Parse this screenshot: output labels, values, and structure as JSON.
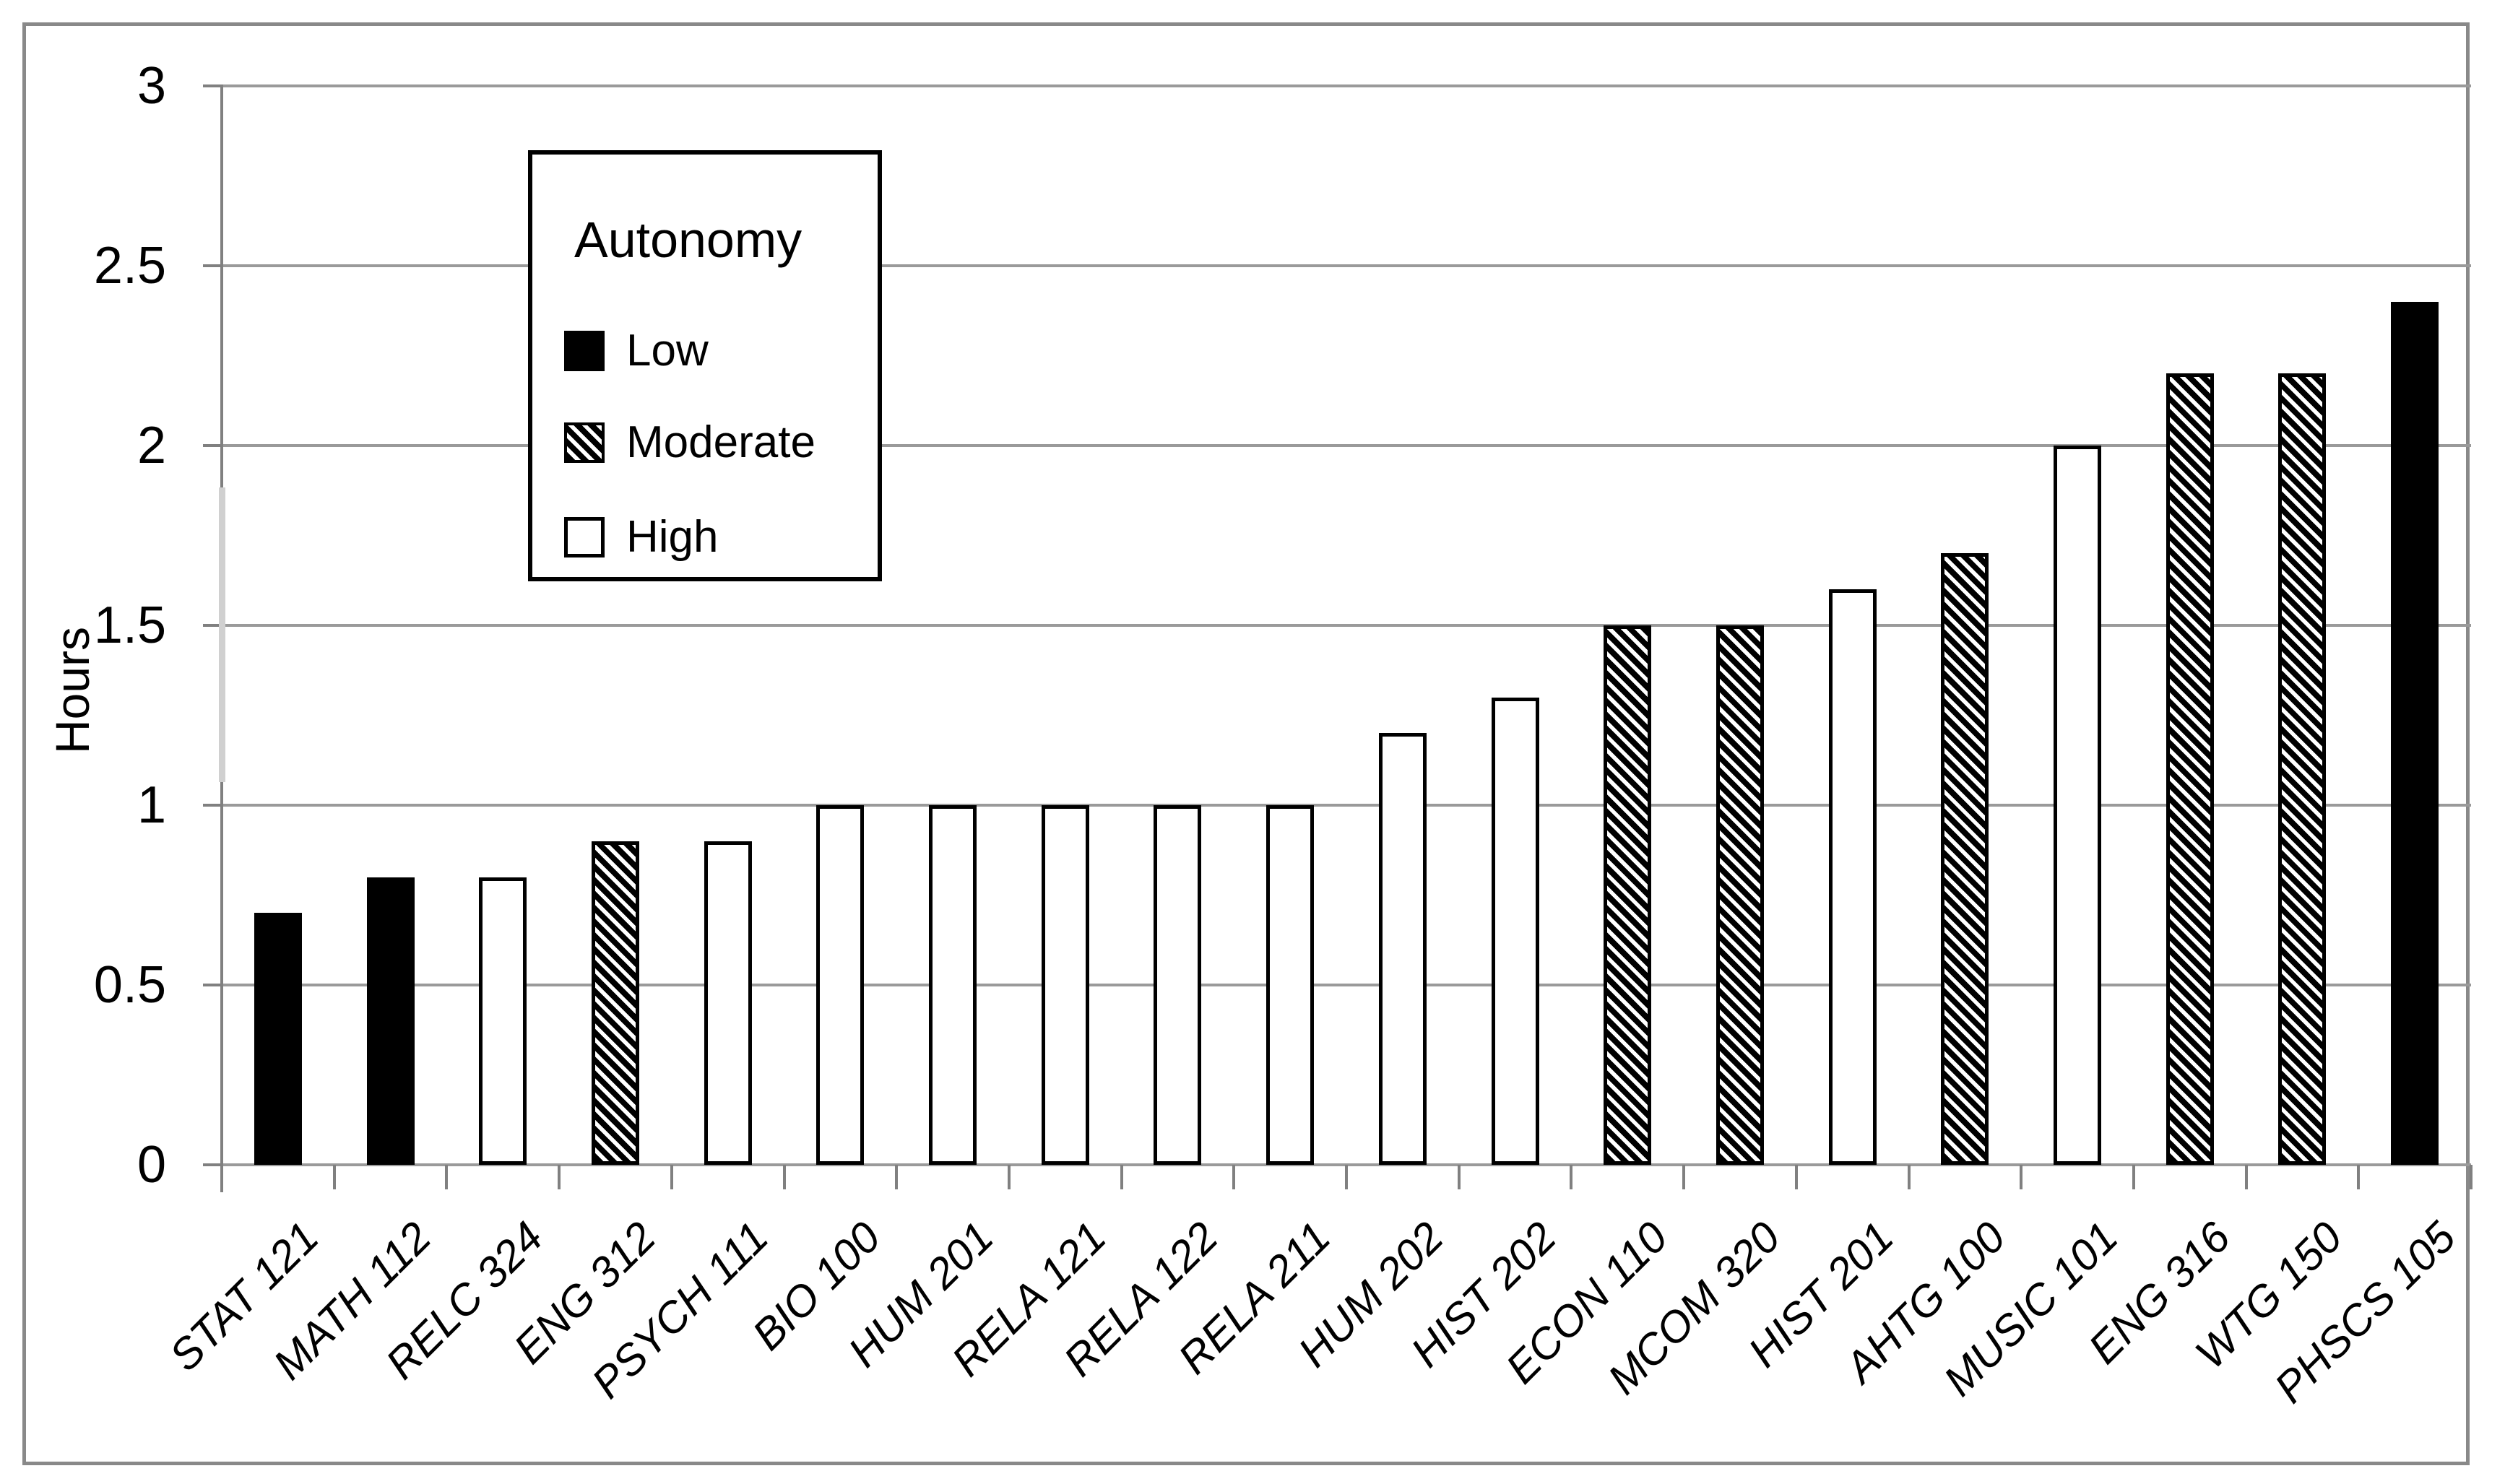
{
  "chart_data": {
    "type": "bar",
    "title": "",
    "xlabel": "",
    "ylabel": "Hours",
    "ylim": [
      0,
      3
    ],
    "grid": "horizontal",
    "yticks": [
      {
        "value": 0,
        "label": "0"
      },
      {
        "value": 0.5,
        "label": "0.5"
      },
      {
        "value": 1,
        "label": "1"
      },
      {
        "value": 1.5,
        "label": "1.5"
      },
      {
        "value": 2,
        "label": "2"
      },
      {
        "value": 2.5,
        "label": "2.5"
      },
      {
        "value": 3,
        "label": "3"
      }
    ],
    "legend": {
      "title": "Autonomy",
      "position": "upper-left-inside",
      "entries": [
        {
          "label": "Low",
          "pattern": "solid-black"
        },
        {
          "label": "Moderate",
          "pattern": "diagonal-hatch"
        },
        {
          "label": "High",
          "pattern": "white-outline"
        }
      ]
    },
    "categories": [
      "STAT 121",
      "MATH 112",
      "RELC 324",
      "ENG 312",
      "PSYCH 111",
      "BIO 100",
      "HUM 201",
      "RELA 121",
      "RELA 122",
      "RELA 211",
      "HUM 202",
      "HIST 202",
      "ECON 110",
      "MCOM 320",
      "HIST 201",
      "AHTG 100",
      "MUSIC 101",
      "ENG 316",
      "WTG 150",
      "PHSCS 105"
    ],
    "bars": [
      {
        "category": "STAT 121",
        "value": 0.7,
        "autonomy": "Low"
      },
      {
        "category": "MATH 112",
        "value": 0.8,
        "autonomy": "Low"
      },
      {
        "category": "RELC 324",
        "value": 0.8,
        "autonomy": "High"
      },
      {
        "category": "ENG 312",
        "value": 0.9,
        "autonomy": "Moderate"
      },
      {
        "category": "PSYCH 111",
        "value": 0.9,
        "autonomy": "High"
      },
      {
        "category": "BIO 100",
        "value": 1.0,
        "autonomy": "High"
      },
      {
        "category": "HUM 201",
        "value": 1.0,
        "autonomy": "High"
      },
      {
        "category": "RELA 121",
        "value": 1.0,
        "autonomy": "High"
      },
      {
        "category": "RELA 122",
        "value": 1.0,
        "autonomy": "High"
      },
      {
        "category": "RELA 211",
        "value": 1.0,
        "autonomy": "High"
      },
      {
        "category": "HUM 202",
        "value": 1.2,
        "autonomy": "High"
      },
      {
        "category": "HIST 202",
        "value": 1.3,
        "autonomy": "High"
      },
      {
        "category": "ECON 110",
        "value": 1.5,
        "autonomy": "Moderate"
      },
      {
        "category": "MCOM 320",
        "value": 1.5,
        "autonomy": "Moderate"
      },
      {
        "category": "HIST 201",
        "value": 1.6,
        "autonomy": "High"
      },
      {
        "category": "AHTG 100",
        "value": 1.7,
        "autonomy": "Moderate"
      },
      {
        "category": "MUSIC 101",
        "value": 2.0,
        "autonomy": "High"
      },
      {
        "category": "ENG 316",
        "value": 2.2,
        "autonomy": "Moderate"
      },
      {
        "category": "WTG 150",
        "value": 2.2,
        "autonomy": "Moderate"
      },
      {
        "category": "PHSCS 105",
        "value": 2.4,
        "autonomy": "Low"
      }
    ]
  },
  "colors": {
    "bar_fill_low": "#000000",
    "bar_fill_high": "#ffffff",
    "bar_outline": "#000000",
    "gridline": "#9a9a9a",
    "axis": "#808080",
    "chart_border": "#898989",
    "background": "#ffffff",
    "text": "#000000"
  }
}
